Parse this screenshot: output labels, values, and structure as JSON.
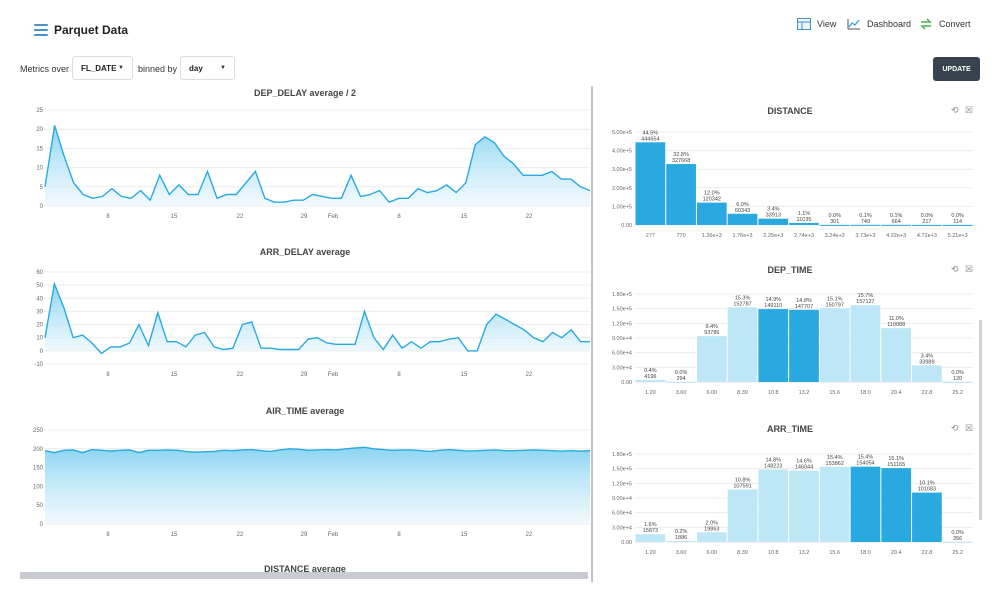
{
  "header": {
    "title": "Parquet Data",
    "menu_icon": "hamburger-menu-icon"
  },
  "nav": [
    {
      "label": "View",
      "icon": "table-view-icon"
    },
    {
      "label": "Dashboard",
      "icon": "line-chart-icon"
    },
    {
      "label": "Convert",
      "icon": "convert-arrows-icon"
    }
  ],
  "controls": {
    "metrics_label": "Metrics over",
    "metric_value": "FL_DATE",
    "binned_label": "binned by",
    "bin_value": "day",
    "update_label": "UPDATE"
  },
  "colors": {
    "accent": "#2aa9e0",
    "fill_light": "#bfe6f6",
    "bar_dark": "#2aa9e0",
    "bar_light": "#bde6f6",
    "button": "#37444f"
  },
  "chart_data": [
    {
      "type": "area",
      "title": "DEP_DELAY average / 2",
      "ylim": [
        0,
        25
      ],
      "yticks": [
        "0",
        "5",
        "10",
        "15",
        "20",
        "25"
      ],
      "xticks": [
        "8",
        "15",
        "22",
        "29",
        "Feb",
        "8",
        "15",
        "22"
      ],
      "values": [
        5,
        21,
        13,
        6,
        3,
        2,
        2.5,
        4.5,
        2.5,
        2,
        4,
        1.5,
        8,
        3,
        5.5,
        3,
        3,
        9,
        2,
        3,
        3,
        6,
        9,
        2,
        1,
        1,
        1.5,
        1.5,
        3,
        2.5,
        2,
        2,
        8,
        2.5,
        3,
        4,
        1,
        2,
        2,
        4.5,
        3.5,
        4,
        5.5,
        3.5,
        6,
        16,
        18,
        16.5,
        13,
        11,
        8,
        8,
        8,
        9,
        7,
        7,
        5,
        4
      ]
    },
    {
      "type": "area",
      "title": "ARR_DELAY average",
      "ylim": [
        -10,
        60
      ],
      "yticks": [
        "-10",
        "0",
        "10",
        "20",
        "30",
        "40",
        "50",
        "60"
      ],
      "xticks": [
        "8",
        "15",
        "22",
        "29",
        "Feb",
        "8",
        "15",
        "22"
      ],
      "values": [
        10,
        51,
        33,
        10,
        12,
        6,
        -2,
        3,
        3,
        6,
        20,
        4,
        29,
        7,
        7,
        3,
        12,
        14,
        3,
        1,
        2,
        20,
        22,
        2,
        2,
        1,
        1,
        1,
        9,
        10,
        6,
        5,
        5,
        5,
        30,
        10,
        1,
        12,
        2,
        7,
        2,
        7,
        7,
        9,
        10,
        0,
        0,
        20,
        28,
        24,
        20,
        16,
        10,
        7,
        14,
        10,
        16,
        7,
        7
      ]
    },
    {
      "type": "area",
      "title": "AIR_TIME average",
      "ylim": [
        0,
        250
      ],
      "yticks": [
        "0",
        "50",
        "100",
        "150",
        "200",
        "250"
      ],
      "xticks": [
        "8",
        "15",
        "22",
        "29",
        "Feb",
        "8",
        "15",
        "22"
      ],
      "values": [
        195,
        190,
        196,
        197,
        190,
        198,
        196,
        194,
        196,
        197,
        190,
        196,
        196,
        197,
        196,
        193,
        191,
        192,
        193,
        196,
        195,
        197,
        198,
        195,
        193,
        197,
        200,
        199,
        196,
        197,
        198,
        197,
        200,
        202,
        204,
        200,
        198,
        196,
        197,
        197,
        195,
        193,
        196,
        198,
        196,
        194,
        195,
        196,
        197,
        195,
        195,
        196,
        197,
        196,
        195,
        194,
        195,
        194,
        195
      ]
    },
    {
      "type": "bar",
      "title": "DISTANCE",
      "ylim": [
        0,
        500000
      ],
      "yticks": [
        "0.00",
        "1.00e+5",
        "2.00e+5",
        "3.00e+5",
        "4.00e+5",
        "5.00e+5"
      ],
      "categories": [
        "277",
        "770",
        "1.26e+3",
        "1.76e+3",
        "2.25e+3",
        "2.74e+3",
        "3.24e+3",
        "3.73e+3",
        "4.22e+3",
        "4.72e+3",
        "5.21e+3"
      ],
      "values": [
        444654,
        327668,
        120342,
        60343,
        33913,
        11035,
        301,
        749,
        664,
        217,
        114
      ],
      "pcts": [
        "44.5%",
        "32.8%",
        "12.0%",
        "6.0%",
        "3.4%",
        "1.1%",
        "0.0%",
        "0.1%",
        "0.1%",
        "0.0%",
        "0.0%"
      ],
      "highlight": [
        0,
        1,
        2,
        3,
        4,
        5,
        6,
        7,
        8,
        9,
        10
      ]
    },
    {
      "type": "bar",
      "title": "DEP_TIME",
      "ylim": [
        0,
        180000
      ],
      "yticks": [
        "0.00",
        "3.00e+4",
        "6.00e+4",
        "9.00e+4",
        "1.20e+5",
        "1.50e+5",
        "1.80e+5"
      ],
      "categories": [
        "1.20",
        "3.60",
        "6.00",
        "8.39",
        "10.8",
        "13.2",
        "15.6",
        "18.0",
        "20.4",
        "22.8",
        "25.2"
      ],
      "values": [
        4196,
        294,
        93786,
        152787,
        149110,
        147707,
        150797,
        157127,
        110088,
        33989,
        120
      ],
      "pcts": [
        "0.4%",
        "0.0%",
        "9.4%",
        "15.3%",
        "14.9%",
        "14.8%",
        "15.1%",
        "15.7%",
        "11.0%",
        "3.4%",
        "0.0%"
      ],
      "highlight": [
        4,
        5
      ]
    },
    {
      "type": "bar",
      "title": "ARR_TIME",
      "ylim": [
        0,
        180000
      ],
      "yticks": [
        "0.00",
        "3.00e+4",
        "6.00e+4",
        "9.00e+4",
        "1.20e+5",
        "1.50e+5",
        "1.80e+5"
      ],
      "categories": [
        "1.20",
        "3.60",
        "6.00",
        "8.39",
        "10.8",
        "13.2",
        "15.6",
        "18.0",
        "20.4",
        "22.8",
        "25.2"
      ],
      "values": [
        15873,
        1886,
        19863,
        107591,
        148223,
        146044,
        153862,
        154054,
        151165,
        101083,
        356
      ],
      "pcts": [
        "1.6%",
        "0.2%",
        "2.0%",
        "10.8%",
        "14.8%",
        "14.6%",
        "15.4%",
        "15.4%",
        "15.1%",
        "10.1%",
        "0.0%"
      ],
      "highlight": [
        7,
        8,
        9
      ]
    }
  ],
  "partial_title": "DISTANCE average"
}
